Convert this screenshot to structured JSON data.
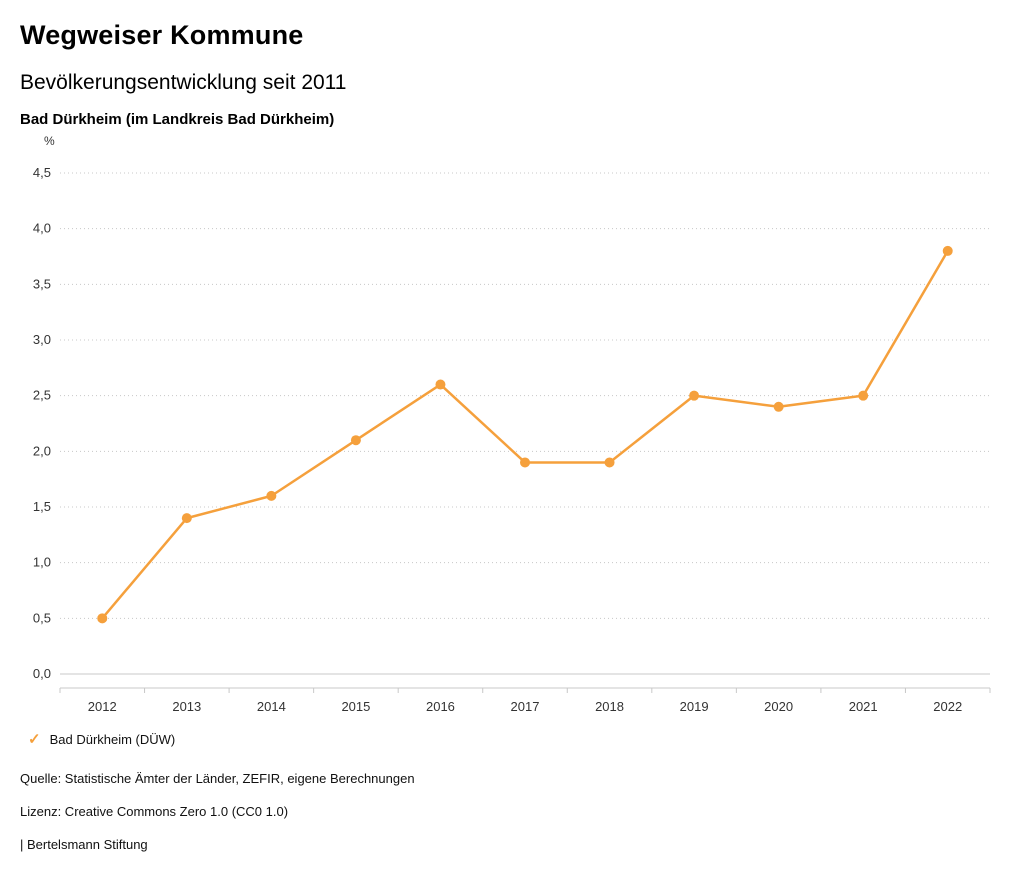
{
  "header": {
    "title": "Wegweiser Kommune",
    "subtitle": "Bevölkerungsentwicklung seit 2011",
    "region": "Bad Dürkheim (im Landkreis Bad Dürkheim)"
  },
  "chart_data": {
    "type": "line",
    "title": "Bevölkerungsentwicklung seit 2011",
    "unit_label": "%",
    "categories": [
      "2012",
      "2013",
      "2014",
      "2015",
      "2016",
      "2017",
      "2018",
      "2019",
      "2020",
      "2021",
      "2022"
    ],
    "series": [
      {
        "name": "Bad Dürkheim (DÜW)",
        "values": [
          0.5,
          1.4,
          1.6,
          2.1,
          2.6,
          1.9,
          1.9,
          2.5,
          2.4,
          2.5,
          3.8
        ],
        "color": "#F5A03C"
      }
    ],
    "ylim": [
      0,
      4.5
    ],
    "ytick_step": 0.5,
    "ytick_labels": [
      "0,0",
      "0,5",
      "1,0",
      "1,5",
      "2,0",
      "2,5",
      "3,0",
      "3,5",
      "4,0",
      "4,5"
    ],
    "grid": true,
    "legend_position": "bottom"
  },
  "legend": {
    "items": [
      {
        "label": "Bad Dürkheim (DÜW)",
        "color": "#F5A03C",
        "marker": "check"
      }
    ]
  },
  "footer": {
    "source": "Quelle: Statistische Ämter der Länder, ZEFIR, eigene Berechnungen",
    "license": "Lizenz: Creative Commons Zero 1.0 (CC0 1.0)",
    "attribution": "| Bertelsmann Stiftung"
  },
  "colors": {
    "accent": "#F5A03C",
    "grid": "#c8c8c8",
    "axis_text": "#333333"
  }
}
